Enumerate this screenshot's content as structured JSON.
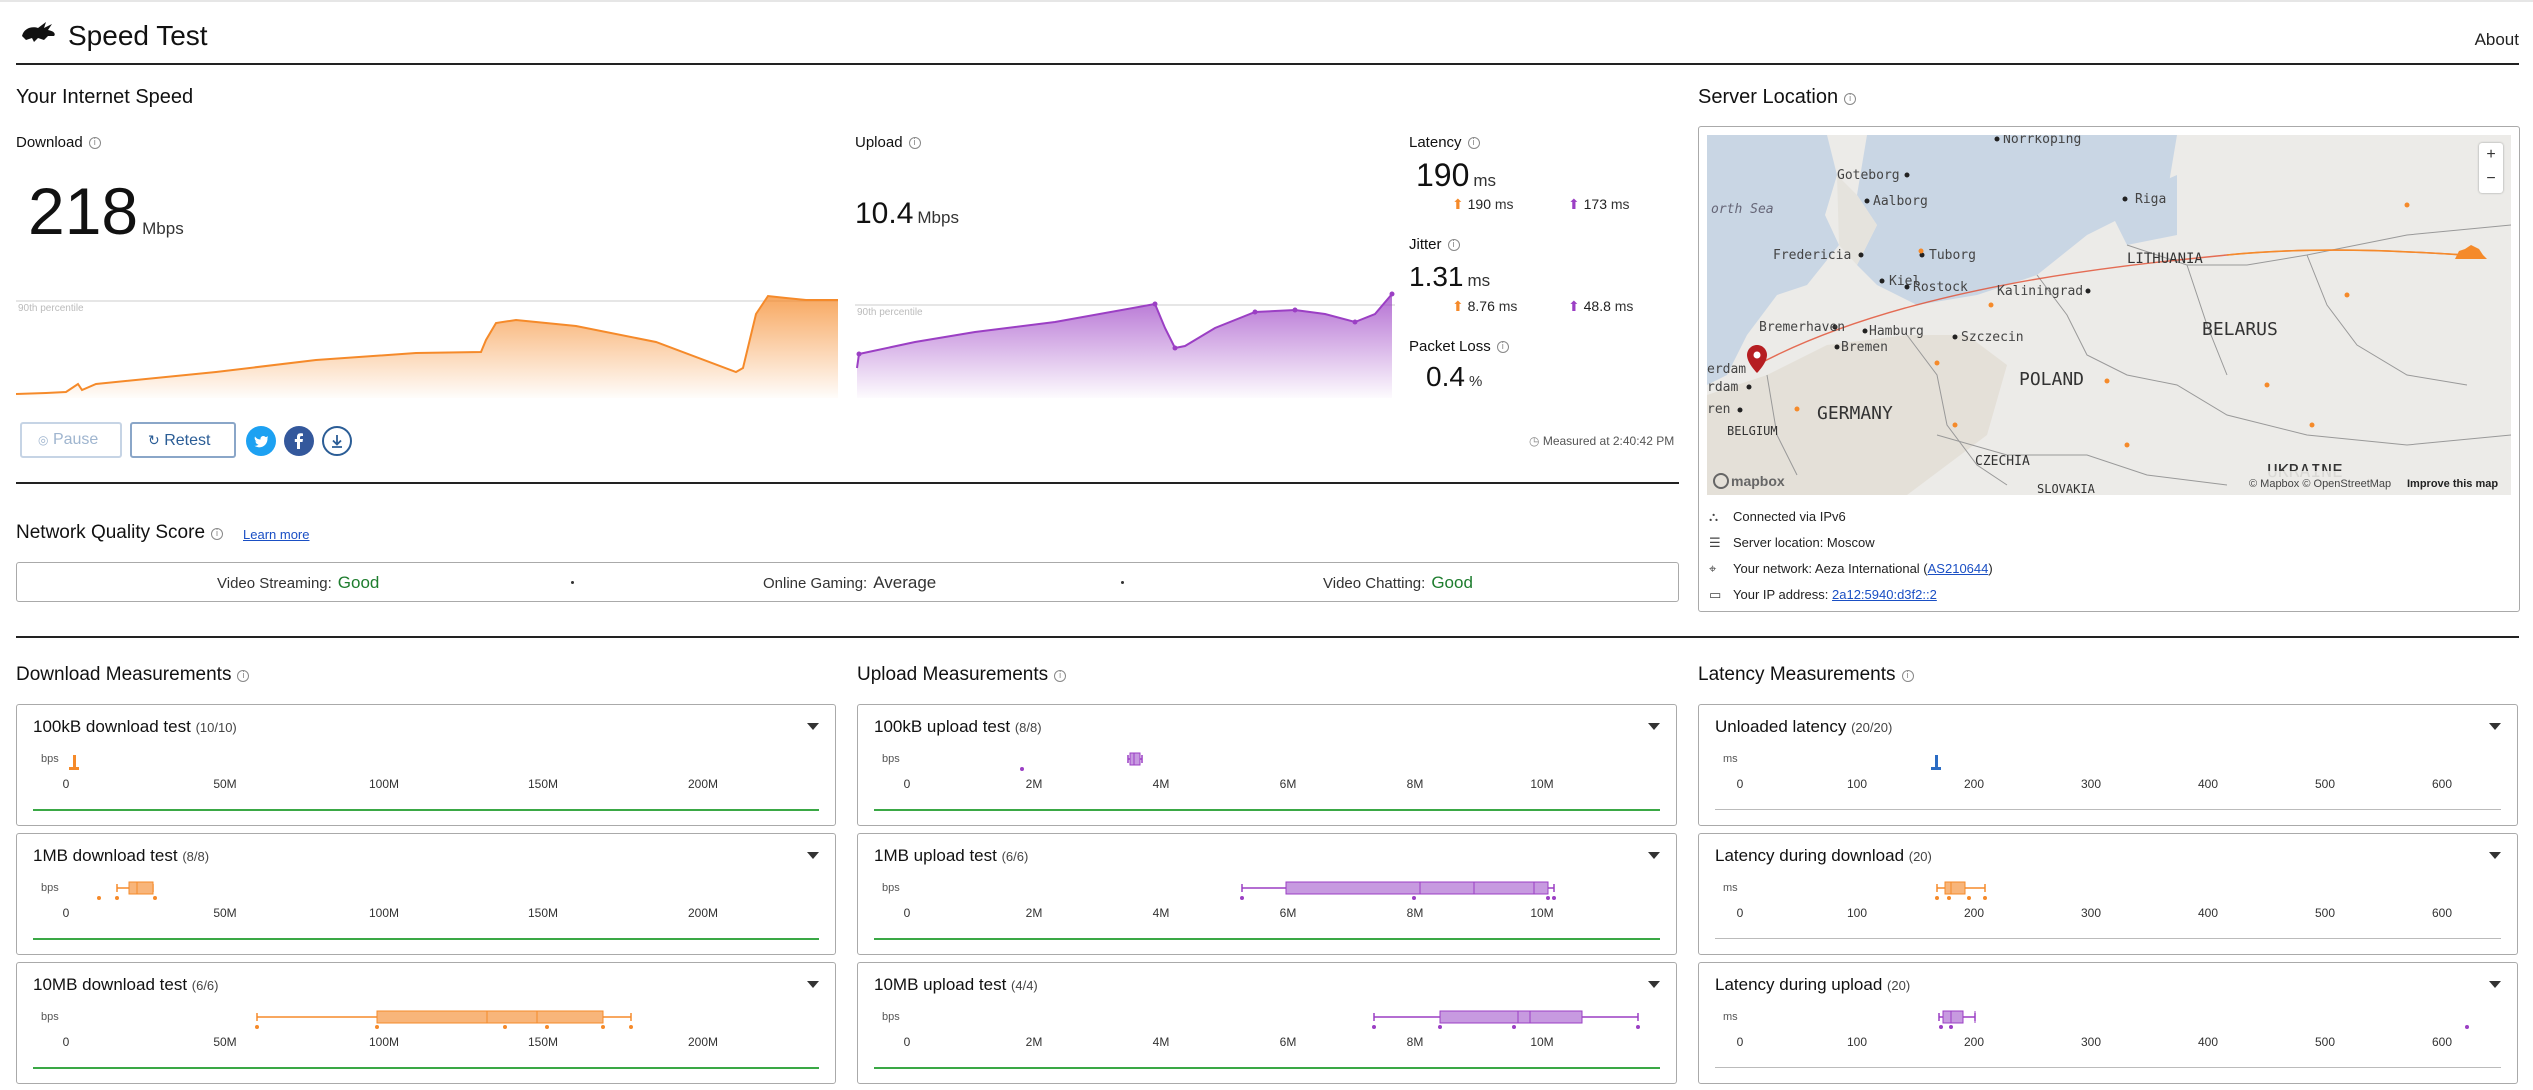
{
  "app": {
    "title": "Speed Test",
    "about": "About"
  },
  "speed": {
    "section_title": "Your Internet Speed",
    "download": {
      "label": "Download",
      "value": "218",
      "unit": "Mbps",
      "percentile": "90th percentile"
    },
    "upload": {
      "label": "Upload",
      "value": "10.4",
      "unit": "Mbps",
      "percentile": "90th percentile"
    },
    "latency": {
      "label": "Latency",
      "value": "190",
      "unit": "ms",
      "down": "190",
      "down_unit": "ms",
      "up": "173",
      "up_unit": "ms"
    },
    "jitter": {
      "label": "Jitter",
      "value": "1.31",
      "unit": "ms",
      "down": "8.76",
      "down_unit": "ms",
      "up": "48.8",
      "up_unit": "ms"
    },
    "packet_loss": {
      "label": "Packet Loss",
      "value": "0.4",
      "unit": "%"
    },
    "measured_at": "Measured at 2:40:42 PM",
    "buttons": {
      "pause": "Pause",
      "retest": "Retest"
    }
  },
  "network_quality": {
    "title": "Network Quality Score",
    "learn_more": "Learn more",
    "items": [
      {
        "label": "Video Streaming:",
        "value": "Good"
      },
      {
        "label": "Online Gaming:",
        "value": "Average"
      },
      {
        "label": "Video Chatting:",
        "value": "Good"
      }
    ]
  },
  "server": {
    "title": "Server Location",
    "map_labels": {
      "north_sea": "orth Sea",
      "lithuania": "LITHUANIA",
      "belarus": "BELARUS",
      "poland": "POLAND",
      "germany": "GERMANY",
      "czechia": "CZECHIA",
      "belgium": "BELGIUM",
      "ukraine": "UKRAINE",
      "slovakia": "SLOVAKIA",
      "riga": "Riga",
      "goteborg": "Goteborg",
      "aalborg": "Aalborg",
      "fredericia": "Fredericia",
      "tuborg": "Tuborg",
      "kiel": "Kiel",
      "rostock": "Rostock",
      "kaliningrad": "Kaliningrad",
      "bremerhaven": "Bremerhaven",
      "hamburg": "Hamburg",
      "szczecin": "Szczecin",
      "bremen": "Bremen",
      "norrkoping": "Norrkoping",
      "amsterdam": "erdam",
      "rdam": "rdam",
      "ren": "ren",
      "mapbox": "mapbox",
      "attribution": "© Mapbox © OpenStreetMap",
      "improve": "Improve this map",
      "zoom_in": "+",
      "zoom_out": "−"
    },
    "connected": "Connected via IPv6",
    "location": "Server location: Moscow",
    "network_prefix": "Your network: Aeza International (",
    "network_as": "AS210644",
    "network_suffix": ")",
    "ip_prefix": "Your IP address: ",
    "ip": "2a12:5940:d3f2::2"
  },
  "measurements": {
    "download": {
      "title": "Download Measurements",
      "unit": "bps",
      "ticks": [
        "0",
        "50M",
        "100M",
        "150M",
        "200M"
      ],
      "panels": [
        {
          "name": "100kB download test",
          "count": "(10/10)"
        },
        {
          "name": "1MB download test",
          "count": "(8/8)"
        },
        {
          "name": "10MB download test",
          "count": "(6/6)"
        }
      ]
    },
    "upload": {
      "title": "Upload Measurements",
      "unit": "bps",
      "ticks": [
        "0",
        "2M",
        "4M",
        "6M",
        "8M",
        "10M"
      ],
      "panels": [
        {
          "name": "100kB upload test",
          "count": "(8/8)"
        },
        {
          "name": "1MB upload test",
          "count": "(6/6)"
        },
        {
          "name": "10MB upload test",
          "count": "(4/4)"
        }
      ]
    },
    "latency": {
      "title": "Latency Measurements",
      "unit": "ms",
      "ticks": [
        "0",
        "100",
        "200",
        "300",
        "400",
        "500",
        "600"
      ],
      "panels": [
        {
          "name": "Unloaded latency",
          "count": "(20/20)"
        },
        {
          "name": "Latency during download",
          "count": "(20)"
        },
        {
          "name": "Latency during upload",
          "count": "(20)"
        }
      ]
    }
  },
  "colors": {
    "download": "#f58a2a",
    "upload": "#9b3fc4",
    "latency": "#2b6cc4",
    "good": "#1e7d2e",
    "accent": "#2b5d96"
  }
}
